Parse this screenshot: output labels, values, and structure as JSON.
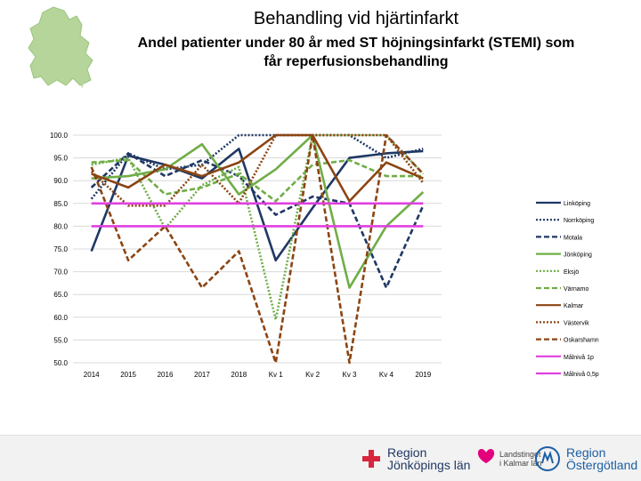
{
  "header": {
    "title": "Behandling vid hjärtinfarkt",
    "subtitle_line1": "Andel patienter under 80 år med ST höjningsinfarkt (STEMI) som",
    "subtitle_line2": "får reperfusionsbehandling"
  },
  "chart_data": {
    "type": "line",
    "categories": [
      "2014",
      "2015",
      "2016",
      "2017",
      "2018",
      "Kv 1",
      "Kv 2",
      "Kv 3",
      "Kv 4",
      "2019"
    ],
    "y_ticks": [
      "100.0",
      "95.0",
      "90.0",
      "85.0",
      "80.0",
      "75.0",
      "70.0",
      "65.0",
      "60.0",
      "55.0",
      "50.0"
    ],
    "ylim": [
      50,
      100
    ],
    "series": [
      {
        "name": "Linköping",
        "color": "#1f3864",
        "dash": "solid",
        "values": [
          74.5,
          95.5,
          93.5,
          90.5,
          97.0,
          72.5,
          84.0,
          95.0,
          96.0,
          96.5
        ]
      },
      {
        "name": "Norrköping",
        "color": "#1f3864",
        "dash": "dotted",
        "values": [
          86.0,
          96.0,
          92.5,
          93.5,
          100.0,
          100.0,
          100.0,
          100.0,
          95.0,
          97.0
        ]
      },
      {
        "name": "Motala",
        "color": "#1f3864",
        "dash": "dashed",
        "values": [
          88.5,
          96.0,
          91.0,
          94.5,
          91.0,
          82.5,
          86.5,
          85.0,
          66.5,
          84.5
        ]
      },
      {
        "name": "Jönköping",
        "color": "#70ad47",
        "dash": "solid",
        "values": [
          90.5,
          91.0,
          92.5,
          98.0,
          87.0,
          92.5,
          100.0,
          66.5,
          80.0,
          87.5
        ]
      },
      {
        "name": "Eksjö",
        "color": "#70ad47",
        "dash": "dotted",
        "values": [
          93.5,
          95.0,
          79.5,
          89.0,
          93.0,
          59.5,
          100.0,
          100.0,
          100.0,
          91.5
        ]
      },
      {
        "name": "Värnamo",
        "color": "#70ad47",
        "dash": "dashed",
        "values": [
          94.0,
          94.5,
          87.0,
          88.5,
          91.5,
          85.5,
          93.5,
          94.5,
          91.0,
          91.0
        ]
      },
      {
        "name": "Kalmar",
        "color": "#8b4513",
        "dash": "solid",
        "values": [
          91.5,
          88.5,
          93.5,
          91.0,
          94.0,
          100.0,
          100.0,
          85.5,
          94.0,
          90.5
        ]
      },
      {
        "name": "Västervik",
        "color": "#8b4513",
        "dash": "dotted",
        "values": [
          92.0,
          84.5,
          84.5,
          93.5,
          85.0,
          100.0,
          100.0,
          100.0,
          100.0,
          89.5
        ]
      },
      {
        "name": "Oskarshamn",
        "color": "#8b4513",
        "dash": "dashed",
        "values": [
          93.0,
          72.5,
          80.0,
          66.5,
          74.5,
          50.0,
          100.0,
          50.0,
          100.0,
          91.5
        ]
      },
      {
        "name": "Målnivå 1p",
        "color": "#e040e0",
        "dash": "solid",
        "values": [
          80,
          80,
          80,
          80,
          80,
          80,
          80,
          80,
          80,
          80
        ]
      },
      {
        "name": "Målnivå 0,5p",
        "color": "#e040e0",
        "dash": "solid",
        "values": [
          85,
          85,
          85,
          85,
          85,
          85,
          85,
          85,
          85,
          85
        ]
      }
    ],
    "legend_labels": [
      "Linköping",
      "Norrköping",
      "Motala",
      "Jönköping",
      "Eksjö",
      "Värnamo",
      "Kalmar",
      "Västervik",
      "Oskarshamn",
      "Målnivå 1p",
      "Målnivå 0,5p"
    ],
    "legend_position": "right"
  },
  "footer": {
    "logo1_line1": "Region",
    "logo1_line2": "Jönköpings län",
    "logo2_line1": "Landstinget",
    "logo2_line2": "i Kalmar län",
    "logo3_line1": "Region",
    "logo3_line2": "Östergötland"
  }
}
